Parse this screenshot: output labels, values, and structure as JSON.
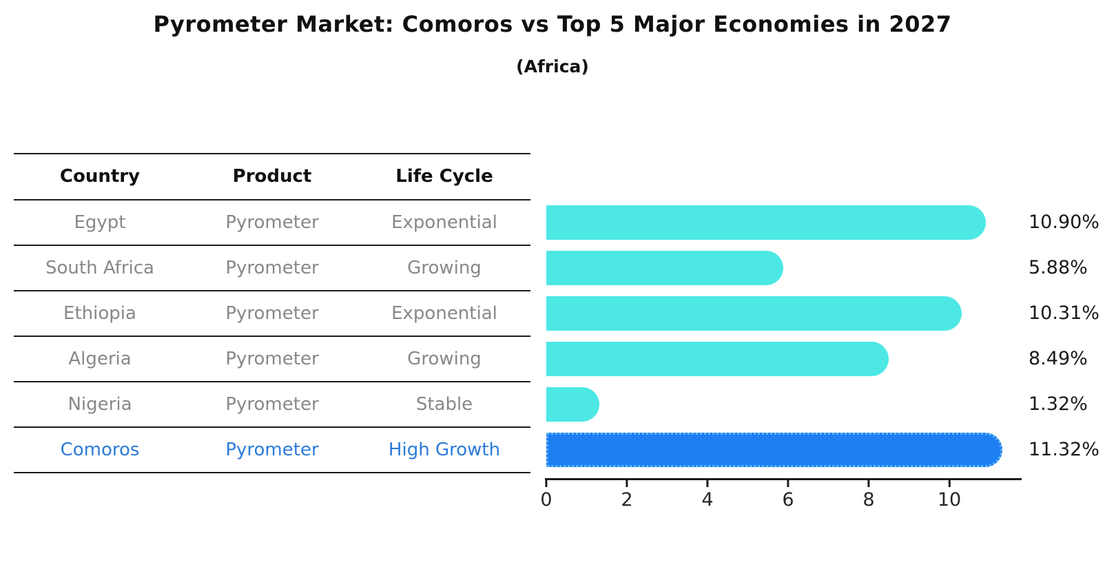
{
  "title": "Pyrometer Market: Comoros vs Top 5 Major Economies in 2027",
  "subtitle": "(Africa)",
  "table": {
    "headers": [
      "Country",
      "Product",
      "Life Cycle"
    ],
    "rows": [
      {
        "country": "Egypt",
        "product": "Pyrometer",
        "life_cycle": "Exponential",
        "highlight": false
      },
      {
        "country": "South Africa",
        "product": "Pyrometer",
        "life_cycle": "Growing",
        "highlight": false
      },
      {
        "country": "Ethiopia",
        "product": "Pyrometer",
        "life_cycle": "Exponential",
        "highlight": false
      },
      {
        "country": "Algeria",
        "product": "Pyrometer",
        "life_cycle": "Growing",
        "highlight": false
      },
      {
        "country": "Nigeria",
        "product": "Pyrometer",
        "life_cycle": "Stable",
        "highlight": false
      },
      {
        "country": "Comoros",
        "product": "Pyrometer",
        "life_cycle": "High Growth",
        "highlight": true
      }
    ]
  },
  "chart_data": {
    "type": "bar",
    "orientation": "horizontal",
    "title": "Pyrometer Market: Comoros vs Top 5 Major Economies in 2027",
    "subtitle": "(Africa)",
    "categories": [
      "Egypt",
      "South Africa",
      "Ethiopia",
      "Algeria",
      "Nigeria",
      "Comoros"
    ],
    "values": [
      10.9,
      5.88,
      10.31,
      8.49,
      1.32,
      11.32
    ],
    "value_labels": [
      "10.90%",
      "5.88%",
      "10.31%",
      "8.49%",
      "1.32%",
      "11.32%"
    ],
    "xlabel": "",
    "ylabel": "",
    "xlim": [
      0,
      12
    ],
    "xticks": [
      0,
      2,
      4,
      6,
      8,
      10
    ],
    "grid": false,
    "legend": false,
    "bar_color": "#4DE8E4",
    "highlight_color": "#1E7FF2",
    "highlight_edge_color": "#5FB8F5",
    "highlight_index": 5
  },
  "colors": {
    "text_muted": "#86888B",
    "highlight_text": "#2B7CD9",
    "line": "#1a1a1a"
  }
}
